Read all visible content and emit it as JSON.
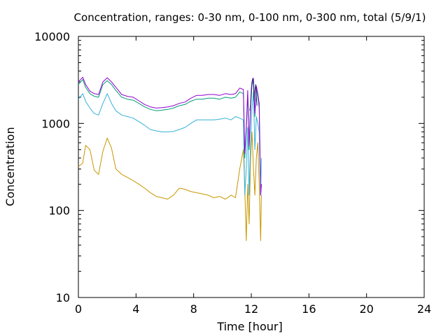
{
  "chart_data": {
    "type": "line",
    "title": "Concentration, ranges: 0-30 nm, 0-100 nm, 0-300 nm, total (5/9/1)",
    "xlabel": "Time [hour]",
    "ylabel": "Concentration",
    "xlim": [
      0,
      24
    ],
    "ylim": [
      10,
      10000
    ],
    "yscale": "log",
    "grid": false,
    "legend": "none",
    "x_ticks": [
      0,
      4,
      8,
      12,
      16,
      20,
      24
    ],
    "y_ticks": [
      10,
      100,
      1000,
      10000
    ],
    "x_tick_labels": [
      "0",
      "4",
      "8",
      "12",
      "16",
      "20",
      "24"
    ],
    "y_tick_labels": [
      "10",
      "100",
      "1000",
      "10000"
    ],
    "series": [
      {
        "color": "#c89600",
        "x": [
          0,
          0.3,
          0.5,
          0.8,
          1.1,
          1.4,
          1.7,
          2.0,
          2.3,
          2.6,
          3.0,
          3.4,
          3.8,
          4.2,
          4.6,
          5.0,
          5.4,
          5.8,
          6.2,
          6.6,
          7.0,
          7.4,
          7.8,
          8.2,
          8.6,
          9.0,
          9.4,
          9.8,
          10.2,
          10.6,
          10.9,
          11.2,
          11.45,
          11.55,
          11.65,
          11.75,
          11.85,
          11.95,
          12.05,
          12.15,
          12.25,
          12.35,
          12.45,
          12.55,
          12.65,
          12.7
        ],
        "y": [
          320,
          350,
          560,
          500,
          290,
          260,
          480,
          680,
          520,
          300,
          260,
          240,
          220,
          200,
          180,
          160,
          145,
          140,
          135,
          150,
          180,
          175,
          165,
          160,
          155,
          150,
          140,
          145,
          135,
          150,
          140,
          300,
          500,
          180,
          45,
          200,
          70,
          400,
          800,
          300,
          150,
          400,
          600,
          200,
          45,
          150
        ]
      },
      {
        "color": "#35b0d8",
        "x": [
          0,
          0.3,
          0.5,
          0.8,
          1.1,
          1.4,
          1.7,
          2.0,
          2.3,
          2.6,
          3.0,
          3.4,
          3.8,
          4.2,
          4.6,
          5.0,
          5.4,
          5.8,
          6.2,
          6.6,
          7.0,
          7.4,
          7.8,
          8.2,
          8.6,
          9.0,
          9.4,
          9.8,
          10.2,
          10.6,
          10.9,
          11.2,
          11.45,
          11.55,
          11.65,
          11.75,
          11.85,
          11.95,
          12.05,
          12.15,
          12.25,
          12.35,
          12.45,
          12.55,
          12.65,
          12.7
        ],
        "y": [
          1900,
          2200,
          1800,
          1500,
          1300,
          1250,
          1700,
          2200,
          1700,
          1400,
          1250,
          1200,
          1150,
          1050,
          950,
          850,
          820,
          800,
          800,
          810,
          850,
          900,
          1000,
          1100,
          1100,
          1100,
          1100,
          1120,
          1150,
          1100,
          1200,
          1150,
          1100,
          150,
          300,
          900,
          150,
          600,
          1500,
          2300,
          500,
          1200,
          1000,
          800,
          150,
          400
        ]
      },
      {
        "color": "#009e73",
        "x": [
          0,
          0.3,
          0.5,
          0.8,
          1.1,
          1.4,
          1.7,
          2.0,
          2.3,
          2.6,
          3.0,
          3.4,
          3.8,
          4.2,
          4.6,
          5.0,
          5.4,
          5.8,
          6.2,
          6.6,
          7.0,
          7.4,
          7.8,
          8.2,
          8.6,
          9.0,
          9.4,
          9.8,
          10.2,
          10.6,
          10.9,
          11.2,
          11.45,
          11.55,
          11.65,
          11.75,
          11.85,
          11.95,
          12.05,
          12.15,
          12.25,
          12.35,
          12.45,
          12.55,
          12.65,
          12.7
        ],
        "y": [
          2800,
          3200,
          2600,
          2200,
          2050,
          2000,
          2800,
          3100,
          2800,
          2400,
          2000,
          1900,
          1850,
          1700,
          1550,
          1450,
          1400,
          1420,
          1450,
          1500,
          1600,
          1650,
          1800,
          1900,
          1900,
          1950,
          1950,
          1900,
          2000,
          1950,
          2000,
          2300,
          2200,
          400,
          800,
          2200,
          500,
          1500,
          2800,
          3100,
          1200,
          2500,
          2000,
          1500,
          150,
          200
        ]
      },
      {
        "color": "#9400d3",
        "x": [
          0,
          0.3,
          0.5,
          0.8,
          1.1,
          1.4,
          1.7,
          2.0,
          2.3,
          2.6,
          3.0,
          3.4,
          3.8,
          4.2,
          4.6,
          5.0,
          5.4,
          5.8,
          6.2,
          6.6,
          7.0,
          7.4,
          7.8,
          8.2,
          8.6,
          9.0,
          9.4,
          9.8,
          10.2,
          10.6,
          10.9,
          11.2,
          11.45,
          11.55,
          11.65,
          11.75,
          11.85,
          11.95,
          12.05,
          12.15,
          12.25,
          12.35,
          12.45,
          12.55,
          12.65,
          12.7
        ],
        "y": [
          3000,
          3400,
          2800,
          2350,
          2200,
          2150,
          3000,
          3350,
          3000,
          2600,
          2150,
          2050,
          2000,
          1820,
          1650,
          1550,
          1500,
          1520,
          1550,
          1600,
          1700,
          1760,
          1950,
          2100,
          2100,
          2150,
          2150,
          2100,
          2200,
          2150,
          2200,
          2550,
          2450,
          450,
          900,
          2400,
          550,
          1650,
          3000,
          3300,
          1300,
          2700,
          2200,
          1700,
          150,
          200
        ]
      },
      {
        "color": "#2b2f7a",
        "x": [
          11.9,
          11.95,
          12.0,
          12.05,
          12.1,
          12.15,
          12.2,
          12.25,
          12.3,
          12.35,
          12.4
        ],
        "y": [
          1400,
          1700,
          2500,
          3000,
          3300,
          2800,
          1800,
          2400,
          2800,
          2000,
          1600
        ]
      }
    ]
  }
}
